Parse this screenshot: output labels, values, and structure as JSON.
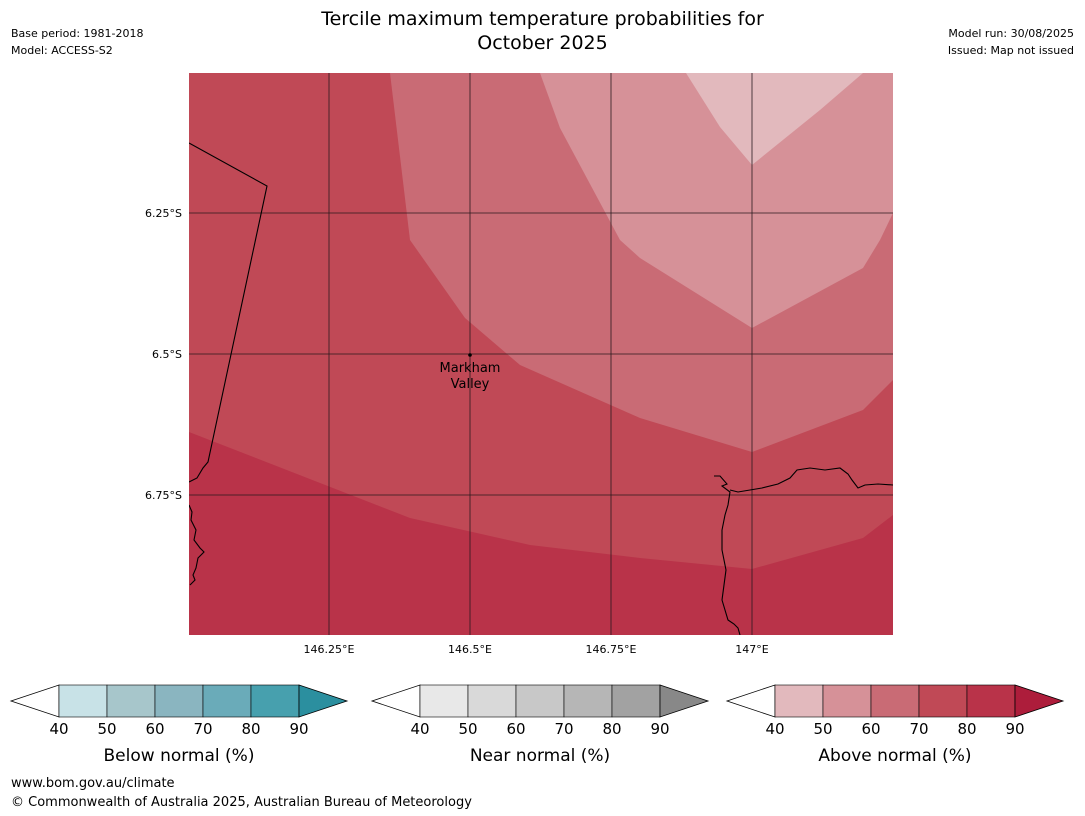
{
  "header": {
    "title_line1": "Tercile maximum temperature probabilities for",
    "title_line2": "October 2025",
    "base_period": "Base period: 1981-2018",
    "model": "Model: ACCESS-S2",
    "model_run": "Model run: 30/08/2025",
    "issued": "Issued: Map not issued"
  },
  "map": {
    "lat_labels": [
      "6.25°S",
      "6.5°S",
      "6.75°S"
    ],
    "lon_labels": [
      "146.25°E",
      "146.5°E",
      "146.75°E",
      "147°E"
    ],
    "place": {
      "line1": "Markham",
      "line2": "Valley"
    },
    "colors": {
      "band_90": "#b93349",
      "band_80": "#c04956",
      "band_70": "#c96b75",
      "band_60": "#d69198",
      "band_50": "#e2b9bd"
    }
  },
  "legends": [
    {
      "label": "Below normal (%)",
      "ticks": [
        "40",
        "50",
        "60",
        "70",
        "80",
        "90"
      ],
      "colors": [
        "#ffffff",
        "#c8e2e7",
        "#a7c6cb",
        "#8ab5c0",
        "#6aabb9",
        "#47a0ae",
        "#2b8f9f"
      ]
    },
    {
      "label": "Near normal (%)",
      "ticks": [
        "40",
        "50",
        "60",
        "70",
        "80",
        "90"
      ],
      "colors": [
        "#ffffff",
        "#e8e8e8",
        "#d9d9d9",
        "#c8c8c8",
        "#b6b6b6",
        "#a2a2a2",
        "#888888"
      ]
    },
    {
      "label": "Above normal (%)",
      "ticks": [
        "40",
        "50",
        "60",
        "70",
        "80",
        "90"
      ],
      "colors": [
        "#ffffff",
        "#e2b9bd",
        "#d69198",
        "#c96b75",
        "#c04956",
        "#b93349",
        "#ad1d3b"
      ]
    }
  ],
  "footer": {
    "url": "www.bom.gov.au/climate",
    "copyright": "© Commonwealth of Australia 2025, Australian Bureau of Meteorology"
  }
}
